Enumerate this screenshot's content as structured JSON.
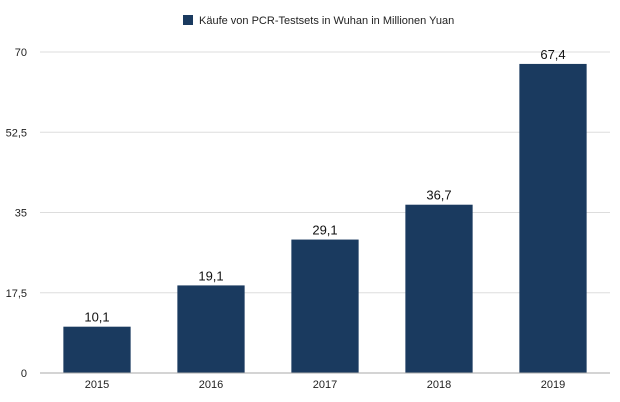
{
  "chart_data": {
    "type": "bar",
    "categories": [
      "2015",
      "2016",
      "2017",
      "2018",
      "2019"
    ],
    "series": [
      {
        "name": "Käufe von PCR-Testsets in Wuhan in Millionen Yuan",
        "values": [
          10.1,
          19.1,
          29.1,
          36.7,
          67.4
        ],
        "value_labels": [
          "10,1",
          "19,1",
          "29,1",
          "36,7",
          "67,4"
        ],
        "color": "#1a3a5f"
      }
    ],
    "y_ticks": [
      0,
      17.5,
      35,
      52.5,
      70
    ],
    "y_tick_labels": [
      "0",
      "17,5",
      "35",
      "52,5",
      "70"
    ],
    "ylim": [
      0,
      70
    ],
    "grid": true,
    "legend_position": "top-center"
  }
}
